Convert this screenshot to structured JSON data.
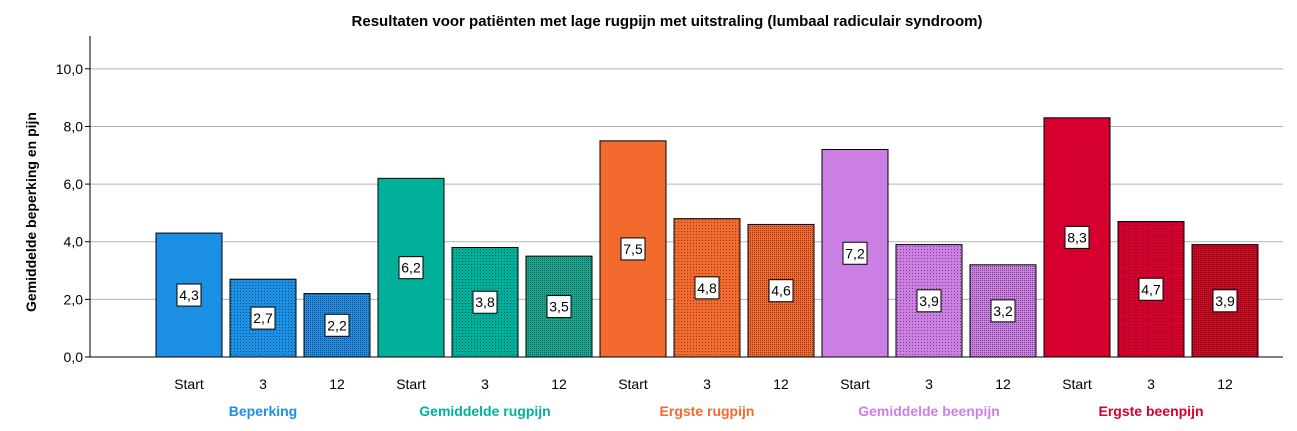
{
  "chart_data": {
    "type": "bar",
    "title": "Resultaten voor patiënten met lage rugpijn met uitstraling (lumbaal radiculair syndroom)",
    "xlabel": "",
    "ylabel": "Gemiddelde beperking en pijn",
    "ylim": [
      0,
      11
    ],
    "yticks": [
      "0,0",
      "2,0",
      "4,0",
      "6,0",
      "8,0",
      "10,0"
    ],
    "grid": true,
    "series": [
      {
        "name": "Beperking",
        "color": "#1a8fe3",
        "categories": [
          "Start",
          "3",
          "12"
        ],
        "values": [
          4.3,
          2.7,
          2.2
        ],
        "labels": [
          "4,3",
          "2,7",
          "2,2"
        ]
      },
      {
        "name": "Gemiddelde rugpijn",
        "color": "#00b09b",
        "categories": [
          "Start",
          "3",
          "12"
        ],
        "values": [
          6.2,
          3.8,
          3.5
        ],
        "labels": [
          "6,2",
          "3,8",
          "3,5"
        ]
      },
      {
        "name": "Ergste rugpijn",
        "color": "#f26a2e",
        "categories": [
          "Start",
          "3",
          "12"
        ],
        "values": [
          7.5,
          4.8,
          4.6
        ],
        "labels": [
          "7,5",
          "4,8",
          "4,6"
        ]
      },
      {
        "name": "Gemiddelde beenpijn",
        "color": "#cc80e3",
        "categories": [
          "Start",
          "3",
          "12"
        ],
        "values": [
          7.2,
          3.9,
          3.2
        ],
        "labels": [
          "7,2",
          "3,9",
          "3,2"
        ]
      },
      {
        "name": "Ergste beenpijn",
        "color": "#d6002f",
        "categories": [
          "Start",
          "3",
          "12"
        ],
        "values": [
          8.3,
          4.7,
          3.9
        ],
        "labels": [
          "8,3",
          "4,7",
          "3,9"
        ]
      }
    ]
  }
}
